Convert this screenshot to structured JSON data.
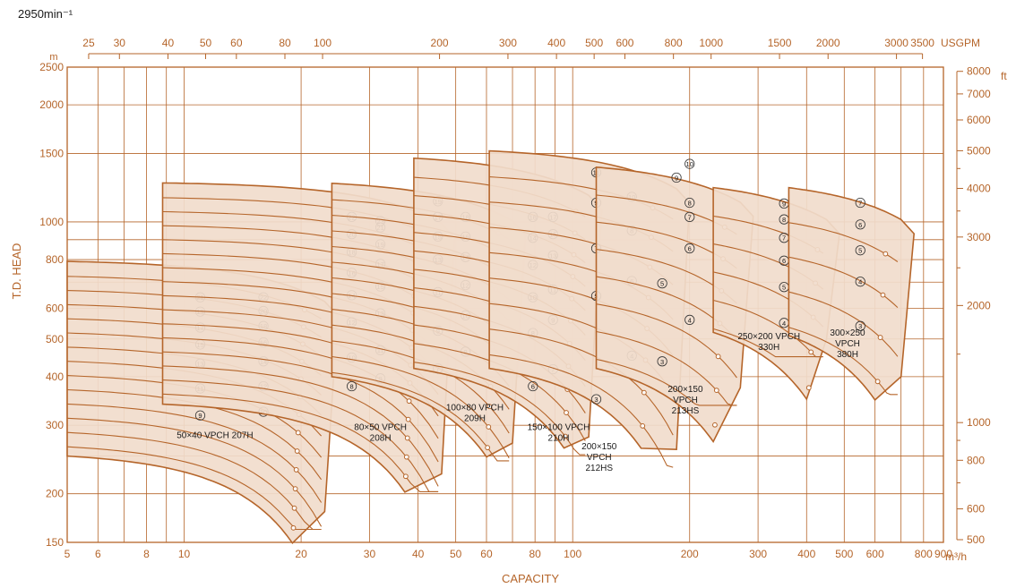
{
  "speed_label": "2950min⁻¹",
  "chart_data": {
    "type": "area",
    "title": "",
    "xlabel": "CAPACITY",
    "ylabel": "T.D. HEAD",
    "x_unit": "m³/h",
    "y_unit": "m",
    "x_scale": "log",
    "y_scale": "log",
    "xlim": [
      5,
      900
    ],
    "ylim": [
      150,
      2500
    ],
    "x_ticks": [
      5,
      6,
      8,
      10,
      20,
      30,
      40,
      50,
      60,
      80,
      100,
      200,
      300,
      400,
      500,
      600,
      800,
      900
    ],
    "y_ticks": [
      150,
      200,
      300,
      400,
      500,
      600,
      800,
      1000,
      1500,
      2000,
      2500
    ],
    "top_axis": {
      "unit": "USGPM",
      "ticks": [
        25,
        30,
        40,
        50,
        60,
        80,
        100,
        200,
        300,
        400,
        500,
        600,
        800,
        1000,
        1500,
        2000,
        3000,
        3500
      ]
    },
    "right_axis": {
      "unit": "ft",
      "ticks": [
        500,
        600,
        800,
        1000,
        2000,
        3000,
        4000,
        5000,
        6000,
        7000,
        8000
      ]
    },
    "grid": true,
    "color": "#b5652a",
    "fill": "#f1dccc",
    "series": [
      {
        "name": "50×40 VPCH 207H",
        "q_bep": 19,
        "q_end": 23,
        "q_start": 5,
        "h_top": 800,
        "h_bottom": 250,
        "h_bottom_end": 180,
        "stages": [
          "9",
          "10",
          "11",
          "12",
          "13",
          "14",
          "15",
          "16",
          "17",
          "18",
          "19",
          "20",
          "21",
          "22"
        ],
        "stage_markers": [
          {
            "label": "9",
            "q": 11,
            "h": 318
          },
          {
            "label": "11",
            "q": 11,
            "h": 373
          },
          {
            "label": "13",
            "q": 11,
            "h": 432
          },
          {
            "label": "15",
            "q": 11,
            "h": 484
          },
          {
            "label": "17",
            "q": 11,
            "h": 535
          },
          {
            "label": "19",
            "q": 11,
            "h": 588
          },
          {
            "label": "21",
            "q": 11,
            "h": 640
          },
          {
            "label": "10",
            "q": 16,
            "h": 325
          },
          {
            "label": "12",
            "q": 16,
            "h": 378
          },
          {
            "label": "14",
            "q": 16,
            "h": 438
          },
          {
            "label": "16",
            "q": 16,
            "h": 490
          },
          {
            "label": "18",
            "q": 16,
            "h": 540
          },
          {
            "label": "20",
            "q": 16,
            "h": 590
          },
          {
            "label": "22",
            "q": 16,
            "h": 640
          }
        ]
      },
      {
        "name": "80×50 VPCH 208H",
        "q_bep": 37,
        "q_end": 46,
        "q_start": 8.8,
        "h_top": 1270,
        "h_bottom": 340,
        "h_bottom_end": 225,
        "stages": [
          "8",
          "9",
          "10",
          "11",
          "12",
          "13",
          "14",
          "15",
          "16",
          "17",
          "18",
          "19",
          "20",
          "21",
          "22",
          "23"
        ],
        "stage_markers": [
          {
            "label": "8",
            "q": 27,
            "h": 378
          },
          {
            "label": "9",
            "q": 32,
            "h": 396
          },
          {
            "label": "10",
            "q": 27,
            "h": 448
          },
          {
            "label": "11",
            "q": 32,
            "h": 468
          },
          {
            "label": "12",
            "q": 27,
            "h": 552
          },
          {
            "label": "13",
            "q": 32,
            "h": 582
          },
          {
            "label": "14",
            "q": 27,
            "h": 648
          },
          {
            "label": "15",
            "q": 32,
            "h": 682
          },
          {
            "label": "16",
            "q": 27,
            "h": 740
          },
          {
            "label": "17",
            "q": 32,
            "h": 780
          },
          {
            "label": "18",
            "q": 27,
            "h": 836
          },
          {
            "label": "19",
            "q": 32,
            "h": 876
          },
          {
            "label": "20",
            "q": 27,
            "h": 930
          },
          {
            "label": "21",
            "q": 32,
            "h": 968
          },
          {
            "label": "22",
            "q": 27,
            "h": 1030
          },
          {
            "label": "23",
            "q": 32,
            "h": 1005
          }
        ]
      },
      {
        "name": "100×80 VPCH 209H",
        "q_bep": 60,
        "q_end": 70,
        "q_start": 24,
        "h_top": 1290,
        "h_bottom": 400,
        "h_bottom_end": 270,
        "stages": [
          "7",
          "8",
          "9",
          "10",
          "11",
          "12",
          "13",
          "14",
          "15",
          "16",
          "17",
          "18",
          "19"
        ],
        "stage_markers": [
          {
            "label": "7",
            "q": 45,
            "h": 420
          },
          {
            "label": "8",
            "q": 53,
            "h": 464
          },
          {
            "label": "9",
            "q": 45,
            "h": 525
          },
          {
            "label": "10",
            "q": 53,
            "h": 575
          },
          {
            "label": "11",
            "q": 45,
            "h": 660
          },
          {
            "label": "12",
            "q": 53,
            "h": 688
          },
          {
            "label": "13",
            "q": 45,
            "h": 800
          },
          {
            "label": "14",
            "q": 53,
            "h": 812
          },
          {
            "label": "15",
            "q": 45,
            "h": 917
          },
          {
            "label": "16",
            "q": 53,
            "h": 917
          },
          {
            "label": "17",
            "q": 45,
            "h": 1030
          },
          {
            "label": "18",
            "q": 53,
            "h": 1030
          },
          {
            "label": "19",
            "q": 45,
            "h": 1130
          }
        ]
      },
      {
        "name": "150×100 VPCH 210H",
        "q_bep": 95,
        "q_end": 110,
        "q_start": 39,
        "h_top": 1500,
        "h_bottom": 420,
        "h_bottom_end": 280,
        "stages": [
          "6",
          "7",
          "8",
          "9",
          "10",
          "11",
          "12",
          "13",
          "14",
          "15",
          "16",
          "17"
        ],
        "stage_markers": [
          {
            "label": "6",
            "q": 79,
            "h": 378
          },
          {
            "label": "7",
            "q": 89,
            "h": 418
          },
          {
            "label": "8",
            "q": 79,
            "h": 518
          },
          {
            "label": "9",
            "q": 89,
            "h": 560
          },
          {
            "label": "10",
            "q": 79,
            "h": 640
          },
          {
            "label": "11",
            "q": 89,
            "h": 670
          },
          {
            "label": "12",
            "q": 79,
            "h": 775
          },
          {
            "label": "13",
            "q": 89,
            "h": 820
          },
          {
            "label": "14",
            "q": 79,
            "h": 910
          },
          {
            "label": "15",
            "q": 89,
            "h": 930
          },
          {
            "label": "16",
            "q": 79,
            "h": 1030
          },
          {
            "label": "17",
            "q": 89,
            "h": 1030
          }
        ]
      },
      {
        "name": "200×150 VPCH 212HS",
        "q_bep": 150,
        "q_end": 185,
        "q_start": 61,
        "h_top": 1560,
        "h_bottom": 420,
        "h_bottom_end": 260,
        "stages": [
          "3",
          "4",
          "5",
          "6",
          "7",
          "8",
          "9",
          "10",
          "11"
        ],
        "stage_markers": [
          {
            "label": "3",
            "q": 115,
            "h": 350
          },
          {
            "label": "4",
            "q": 142,
            "h": 453
          },
          {
            "label": "5",
            "q": 115,
            "h": 645
          },
          {
            "label": "6",
            "q": 142,
            "h": 705
          },
          {
            "label": "7",
            "q": 115,
            "h": 855
          },
          {
            "label": "8",
            "q": 142,
            "h": 950
          },
          {
            "label": "9",
            "q": 115,
            "h": 1120
          },
          {
            "label": "10",
            "q": 142,
            "h": 1160
          },
          {
            "label": "11",
            "q": 115,
            "h": 1340
          }
        ]
      },
      {
        "name": "200×150 VPCH 213HS",
        "q_bep": 230,
        "q_end": 270,
        "q_start": 115,
        "h_top": 1440,
        "h_bottom": 420,
        "h_bottom_end": 375,
        "stages": [
          "3",
          "4",
          "5",
          "6",
          "7",
          "8",
          "9",
          "10"
        ],
        "stage_markers": [
          {
            "label": "3",
            "q": 170,
            "h": 438
          },
          {
            "label": "4",
            "q": 200,
            "h": 560
          },
          {
            "label": "5",
            "q": 170,
            "h": 695
          },
          {
            "label": "6",
            "q": 200,
            "h": 855
          },
          {
            "label": "7",
            "q": 200,
            "h": 1030
          },
          {
            "label": "8",
            "q": 200,
            "h": 1120
          },
          {
            "label": "9",
            "q": 185,
            "h": 1300
          },
          {
            "label": "10",
            "q": 200,
            "h": 1410
          }
        ]
      },
      {
        "name": "250×200 VPCH 330H",
        "q_bep": 400,
        "q_end": 450,
        "q_start": 230,
        "h_top": 1300,
        "h_bottom": 520,
        "h_bottom_end": 500,
        "stages": [
          "4",
          "5",
          "6",
          "7",
          "8",
          "9"
        ],
        "stage_markers": [
          {
            "label": "4",
            "q": 350,
            "h": 550
          },
          {
            "label": "5",
            "q": 350,
            "h": 680
          },
          {
            "label": "6",
            "q": 350,
            "h": 795
          },
          {
            "label": "7",
            "q": 350,
            "h": 910
          },
          {
            "label": "8",
            "q": 350,
            "h": 1015
          },
          {
            "label": "9",
            "q": 350,
            "h": 1115
          }
        ]
      },
      {
        "name": "300×250 VPCH 380H",
        "q_bep": 600,
        "q_end": 700,
        "q_start": 360,
        "h_top": 1300,
        "h_bottom": 510,
        "h_bottom_end": 400,
        "stages": [
          "3",
          "4",
          "5",
          "6",
          "7"
        ],
        "stage_markers": [
          {
            "label": "3",
            "q": 550,
            "h": 540
          },
          {
            "label": "4",
            "q": 550,
            "h": 702
          },
          {
            "label": "5",
            "q": 550,
            "h": 845
          },
          {
            "label": "6",
            "q": 550,
            "h": 985
          },
          {
            "label": "7",
            "q": 550,
            "h": 1120
          }
        ]
      }
    ]
  }
}
